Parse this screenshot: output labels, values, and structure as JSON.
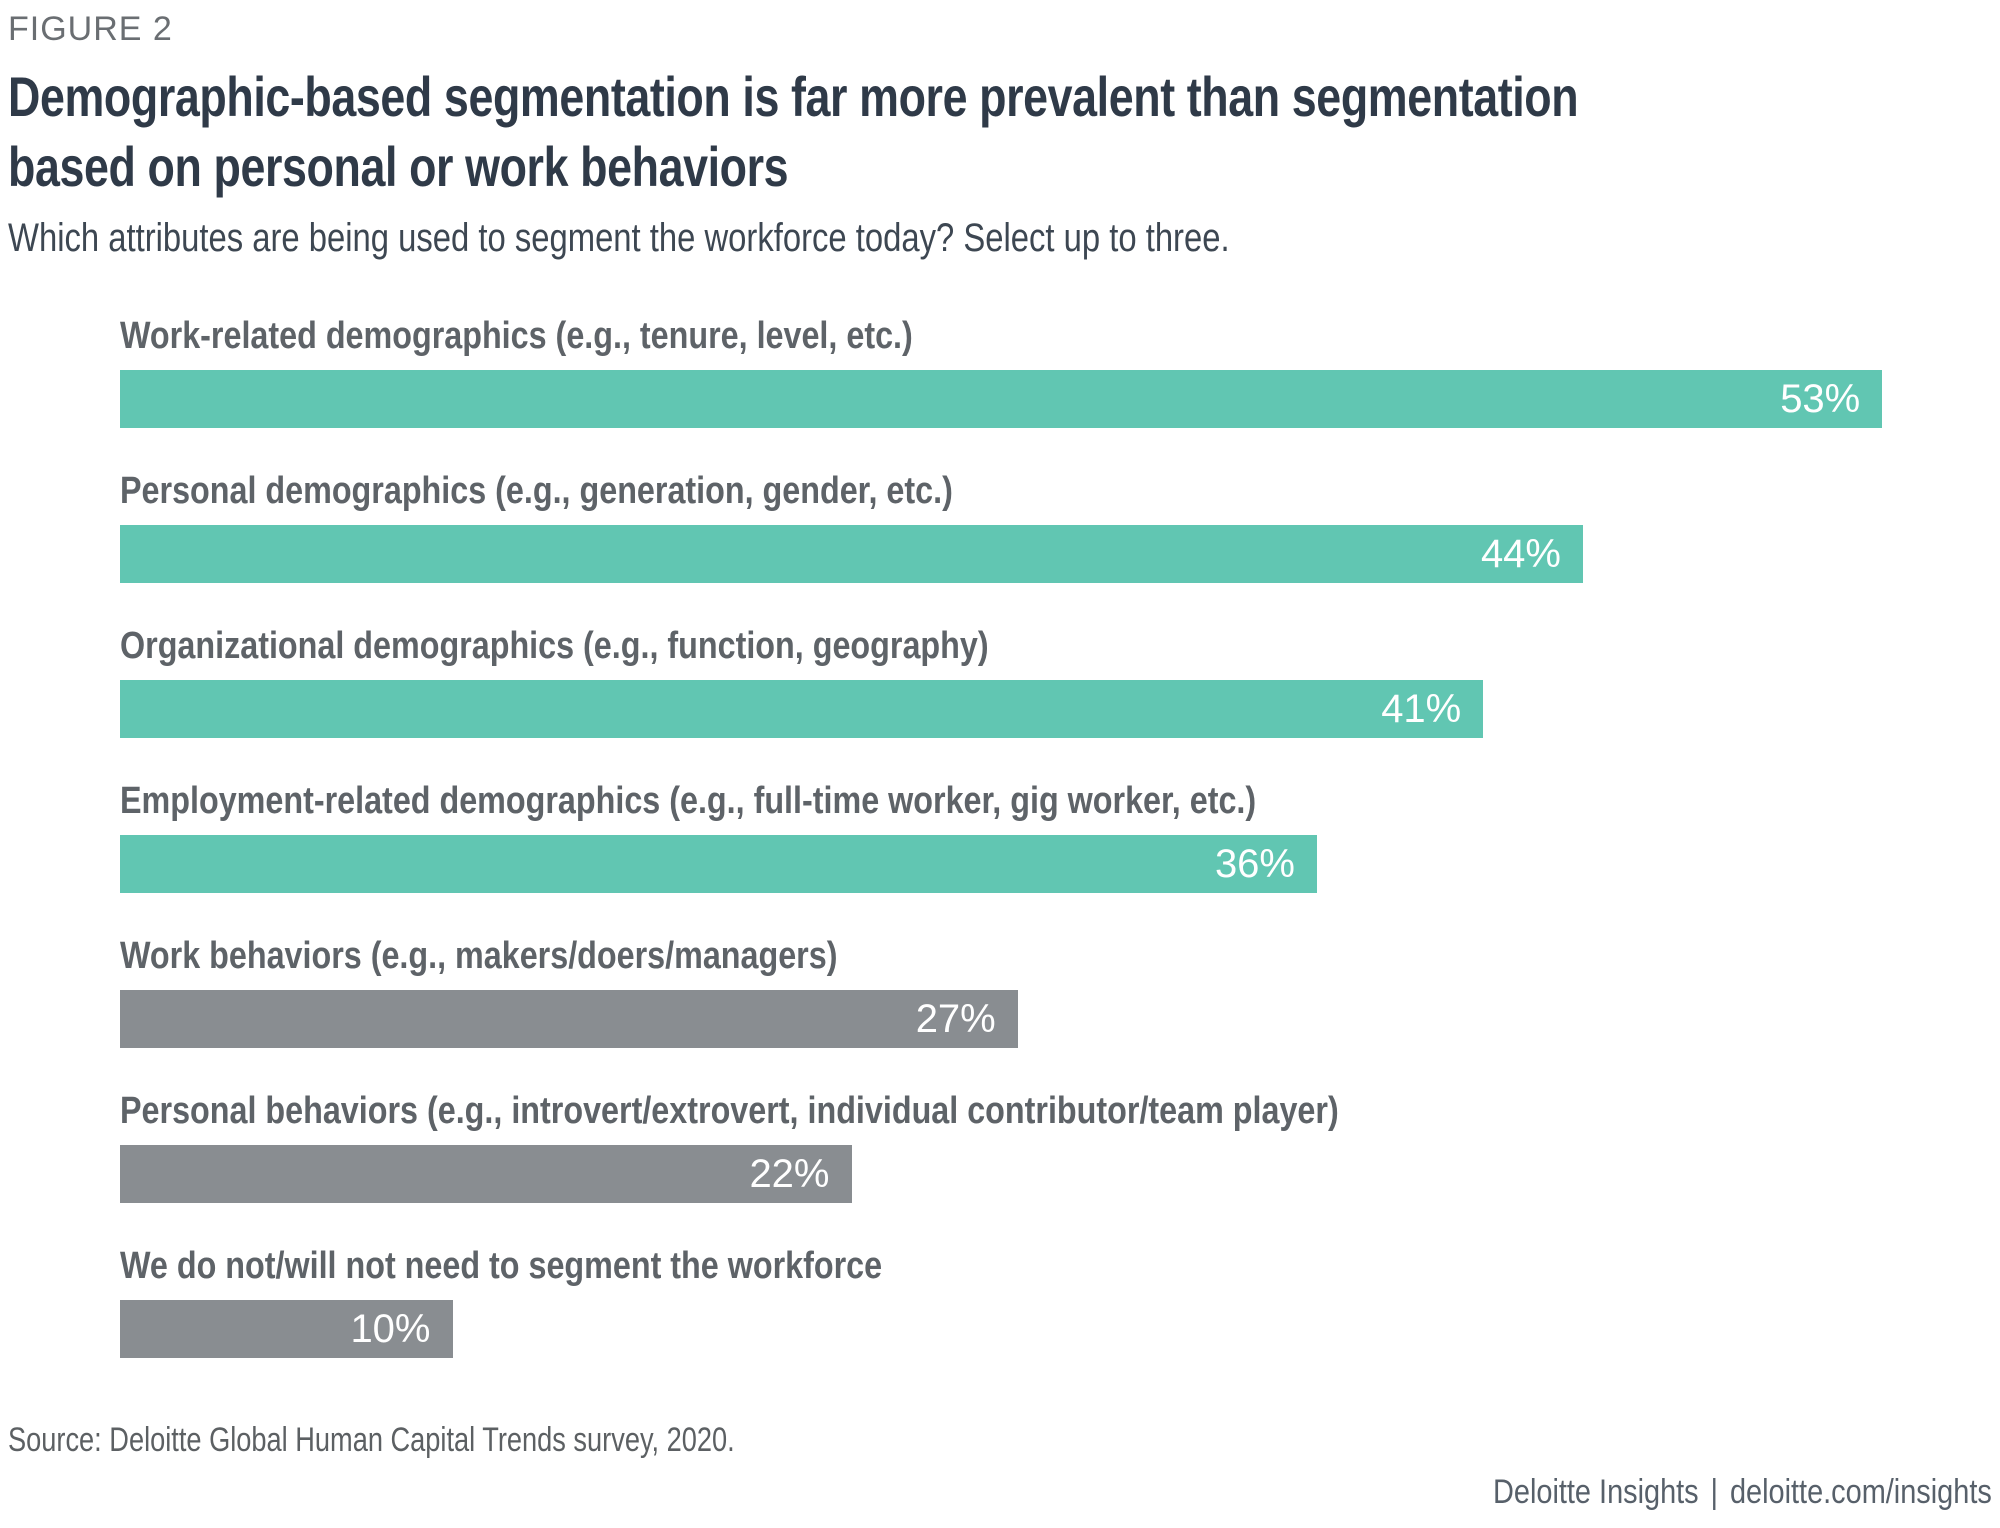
{
  "figure_label": "FIGURE 2",
  "title_lines": [
    "Demographic-based segmentation is far more prevalent than segmentation",
    "based on personal or work behaviors"
  ],
  "subtitle": "Which attributes are being used to segment the workforce today? Select up to three.",
  "source": "Source: Deloitte Global Human Capital Trends survey, 2020.",
  "footer": {
    "brand": "Deloitte Insights",
    "separator": "|",
    "url": "deloitte.com/insights"
  },
  "colors": {
    "bar_teal": "#61C6B2",
    "bar_gray": "#898D91",
    "title_text": "#2F3A48",
    "label_text": "#5E6368",
    "value_text": "#FFFFFF",
    "background": "#FFFFFF"
  },
  "chart_data": {
    "type": "bar",
    "orientation": "horizontal",
    "title": "Demographic-based segmentation is far more prevalent than segmentation based on personal or work behaviors",
    "subtitle": "Which attributes are being used to segment the workforce today? Select up to three.",
    "xlabel": "",
    "ylabel": "",
    "unit": "%",
    "xlim": [
      0,
      54
    ],
    "grid": false,
    "axes_hidden": true,
    "value_label_position": "inside-end",
    "categories": [
      "Work-related demographics (e.g., tenure, level, etc.)",
      "Personal demographics (e.g., generation, gender, etc.)",
      "Organizational demographics (e.g., function, geography)",
      "Employment-related demographics (e.g., full-time worker, gig worker, etc.)",
      "Work behaviors (e.g., makers/doers/managers)",
      "Personal behaviors (e.g., introvert/extrovert, individual contributor/team player)",
      "We do not/will not need to segment the workforce"
    ],
    "values": [
      53,
      44,
      41,
      36,
      27,
      22,
      10
    ],
    "value_labels": [
      "53%",
      "44%",
      "41%",
      "36%",
      "27%",
      "22%",
      "10%"
    ],
    "bar_colors": [
      "#61C6B2",
      "#61C6B2",
      "#61C6B2",
      "#61C6B2",
      "#898D91",
      "#898D91",
      "#898D91"
    ]
  }
}
